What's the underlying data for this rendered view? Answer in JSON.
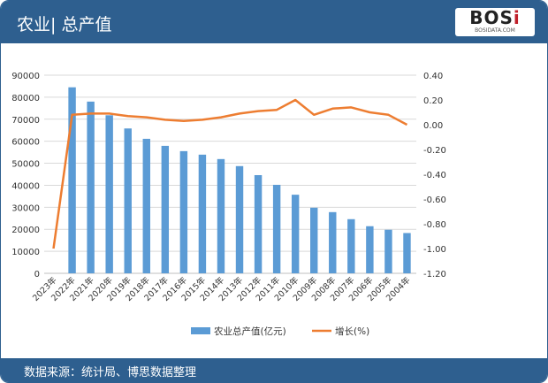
{
  "header": {
    "title": "农业| 总产值",
    "logo": "BOSi",
    "logo_sub": "BOSIDATA.COM"
  },
  "footer": {
    "source": "数据来源：统计局、博思数据整理"
  },
  "chart_data": {
    "type": "bar+line",
    "categories": [
      "2023年",
      "2022年",
      "2021年",
      "2020年",
      "2019年",
      "2018年",
      "2017年",
      "2016年",
      "2015年",
      "2014年",
      "2013年",
      "2012年",
      "2011年",
      "2010年",
      "2009年",
      "2008年",
      "2007年",
      "2006年",
      "2005年",
      "2004年"
    ],
    "series": [
      {
        "name": "农业总产值(亿元)",
        "type": "bar",
        "axis": "left",
        "color": "#5b9bd5",
        "values": [
          0,
          84500,
          78000,
          71800,
          65800,
          61100,
          57900,
          55500,
          53900,
          51900,
          48700,
          44600,
          40200,
          35700,
          29800,
          27800,
          24600,
          21400,
          19800,
          18300
        ]
      },
      {
        "name": "增长(%)",
        "type": "line",
        "axis": "right",
        "color": "#ed7d31",
        "values": [
          -1.0,
          0.08,
          0.09,
          0.09,
          0.07,
          0.06,
          0.04,
          0.03,
          0.04,
          0.06,
          0.09,
          0.11,
          0.12,
          0.2,
          0.08,
          0.13,
          0.14,
          0.1,
          0.08,
          0.0
        ]
      }
    ],
    "left_axis": {
      "ylim": [
        0,
        90000
      ],
      "ticks": [
        "0",
        "10000",
        "20000",
        "30000",
        "40000",
        "50000",
        "60000",
        "70000",
        "80000",
        "90000"
      ]
    },
    "right_axis": {
      "ylim": [
        -1.2,
        0.4
      ],
      "ticks": [
        "-1.20",
        "-1.00",
        "-0.80",
        "-0.60",
        "-0.40",
        "-0.20",
        "0.00",
        "0.20",
        "0.40"
      ]
    },
    "grid": true,
    "legend": "bottom"
  }
}
